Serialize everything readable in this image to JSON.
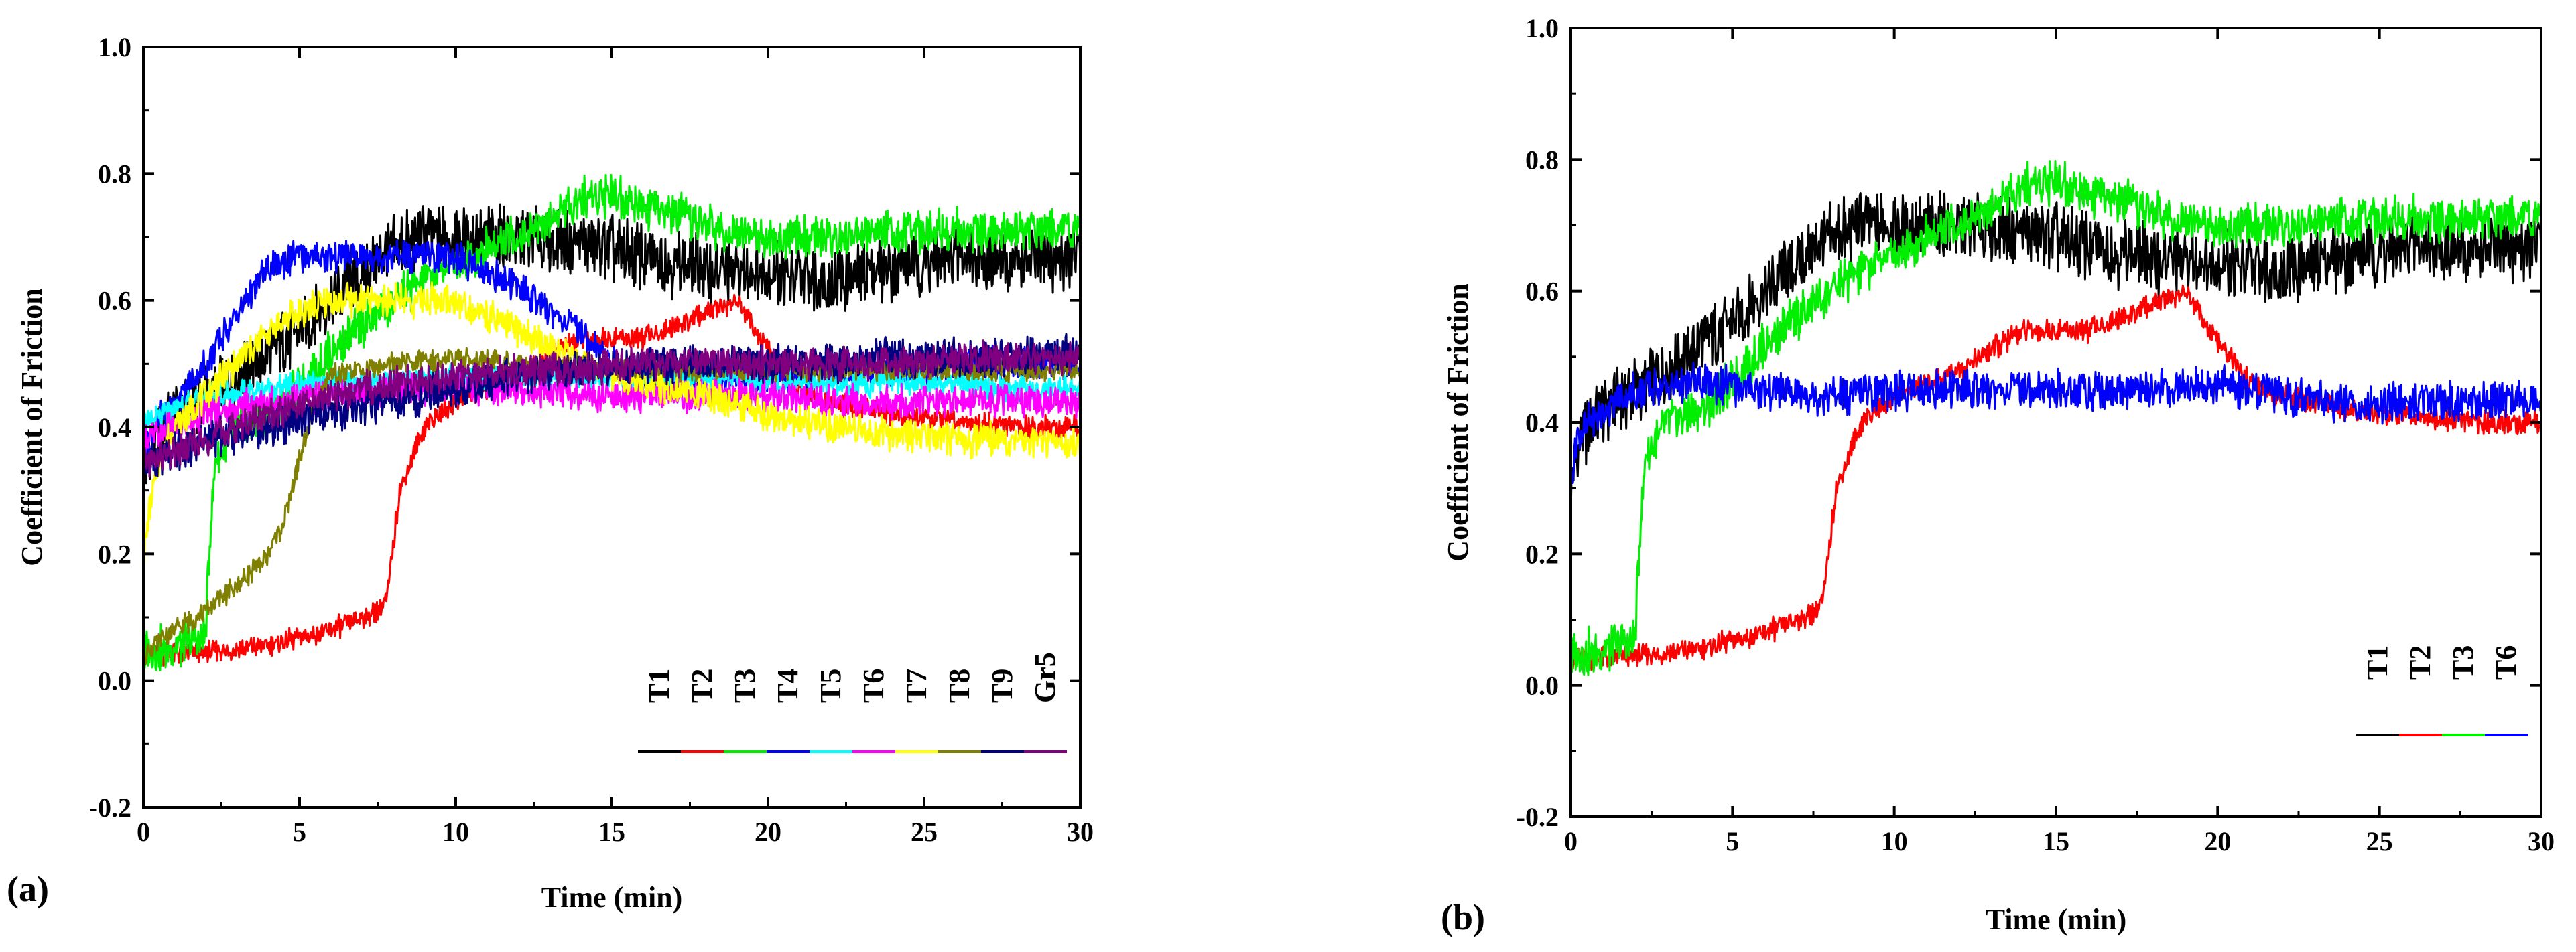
{
  "chart_data": [
    {
      "panel_label": "(a)",
      "type": "line",
      "xlabel": "Time (min)",
      "ylabel": "Coefficient of Friction",
      "xlim": [
        0,
        30
      ],
      "ylim": [
        -0.2,
        1.0
      ],
      "xticks": [
        "0",
        "5",
        "10",
        "15",
        "20",
        "25",
        "30"
      ],
      "yticks": [
        "-0.2",
        "0.0",
        "0.2",
        "0.4",
        "0.6",
        "0.8",
        "1.0"
      ],
      "legend_position": "bottom-right",
      "series": [
        {
          "name": "T1",
          "color": "#000000",
          "noise": 0.06,
          "x": [
            0,
            0.3,
            1,
            2,
            3,
            4,
            5,
            6,
            7,
            8,
            9,
            10,
            12,
            14,
            16,
            18,
            20,
            22,
            24,
            26,
            28,
            30
          ],
          "y": [
            0.3,
            0.38,
            0.42,
            0.45,
            0.48,
            0.52,
            0.55,
            0.6,
            0.64,
            0.68,
            0.7,
            0.7,
            0.7,
            0.69,
            0.67,
            0.65,
            0.64,
            0.63,
            0.65,
            0.67,
            0.66,
            0.67
          ]
        },
        {
          "name": "T2",
          "color": "#ff0000",
          "noise": 0.02,
          "x": [
            0,
            0.2,
            2,
            4,
            6,
            7.5,
            7.8,
            8.2,
            9,
            10,
            12,
            14,
            16,
            18,
            19,
            20,
            21,
            22,
            24,
            26,
            28,
            30
          ],
          "y": [
            0.03,
            0.04,
            0.045,
            0.055,
            0.08,
            0.11,
            0.13,
            0.3,
            0.4,
            0.44,
            0.48,
            0.54,
            0.54,
            0.58,
            0.6,
            0.52,
            0.46,
            0.44,
            0.42,
            0.41,
            0.4,
            0.4
          ]
        },
        {
          "name": "T3",
          "color": "#00ee00",
          "noise": 0.04,
          "x": [
            0,
            0.3,
            1,
            2,
            2.1,
            2.3,
            3,
            4,
            5,
            6,
            8,
            10,
            12,
            14,
            15,
            16,
            18,
            20,
            22,
            24,
            26,
            28,
            30
          ],
          "y": [
            0.04,
            0.05,
            0.05,
            0.07,
            0.2,
            0.35,
            0.4,
            0.42,
            0.46,
            0.52,
            0.6,
            0.66,
            0.7,
            0.76,
            0.77,
            0.75,
            0.72,
            0.7,
            0.7,
            0.71,
            0.71,
            0.71,
            0.72
          ]
        },
        {
          "name": "T4",
          "color": "#0000ff",
          "noise": 0.03,
          "x": [
            0,
            0.3,
            1,
            2,
            3,
            4,
            5,
            6,
            8,
            10,
            12,
            14,
            15,
            16,
            18,
            20,
            22,
            24,
            26,
            28,
            30
          ],
          "y": [
            0.35,
            0.4,
            0.44,
            0.5,
            0.58,
            0.65,
            0.67,
            0.67,
            0.67,
            0.67,
            0.62,
            0.55,
            0.5,
            0.48,
            0.48,
            0.48,
            0.49,
            0.49,
            0.5,
            0.5,
            0.5
          ]
        },
        {
          "name": "T5",
          "color": "#00ffff",
          "noise": 0.025,
          "x": [
            0,
            1,
            2,
            4,
            6,
            8,
            10,
            12,
            14,
            16,
            18,
            20,
            22,
            24,
            26,
            28,
            30
          ],
          "y": [
            0.4,
            0.43,
            0.45,
            0.46,
            0.47,
            0.47,
            0.48,
            0.48,
            0.48,
            0.48,
            0.48,
            0.47,
            0.47,
            0.47,
            0.47,
            0.46,
            0.46
          ]
        },
        {
          "name": "T6",
          "color": "#ff00ff",
          "noise": 0.03,
          "x": [
            0,
            1,
            2,
            4,
            6,
            8,
            10,
            12,
            14,
            16,
            18,
            20,
            22,
            24,
            26,
            28,
            30
          ],
          "y": [
            0.38,
            0.4,
            0.42,
            0.44,
            0.45,
            0.46,
            0.46,
            0.46,
            0.45,
            0.45,
            0.45,
            0.45,
            0.44,
            0.44,
            0.44,
            0.44,
            0.44
          ]
        },
        {
          "name": "T7",
          "color": "#ffff00",
          "noise": 0.03,
          "x": [
            0,
            0.3,
            0.6,
            1,
            2,
            3,
            4,
            5,
            6,
            8,
            10,
            12,
            14,
            16,
            18,
            20,
            22,
            24,
            26,
            28,
            30
          ],
          "y": [
            0.2,
            0.3,
            0.36,
            0.4,
            0.45,
            0.5,
            0.55,
            0.58,
            0.6,
            0.6,
            0.6,
            0.55,
            0.5,
            0.47,
            0.45,
            0.42,
            0.4,
            0.39,
            0.38,
            0.38,
            0.37
          ]
        },
        {
          "name": "T8",
          "color": "#808000",
          "noise": 0.02,
          "x": [
            0,
            0.2,
            1,
            2,
            3,
            4,
            4.5,
            5,
            5.5,
            6,
            8,
            10,
            12,
            14,
            16,
            18,
            20,
            22,
            24,
            26,
            28,
            30
          ],
          "y": [
            0.04,
            0.05,
            0.08,
            0.11,
            0.15,
            0.2,
            0.25,
            0.35,
            0.44,
            0.48,
            0.5,
            0.51,
            0.5,
            0.5,
            0.49,
            0.49,
            0.49,
            0.49,
            0.49,
            0.49,
            0.49,
            0.49
          ]
        },
        {
          "name": "T9",
          "color": "#000080",
          "noise": 0.035,
          "x": [
            0,
            1,
            2,
            4,
            6,
            8,
            10,
            12,
            14,
            16,
            18,
            20,
            22,
            24,
            26,
            28,
            30
          ],
          "y": [
            0.34,
            0.36,
            0.38,
            0.4,
            0.42,
            0.44,
            0.46,
            0.48,
            0.49,
            0.5,
            0.5,
            0.5,
            0.5,
            0.51,
            0.51,
            0.51,
            0.52
          ]
        },
        {
          "name": "Gr5",
          "color": "#800080",
          "noise": 0.03,
          "x": [
            0,
            1,
            2,
            4,
            6,
            8,
            10,
            12,
            14,
            16,
            18,
            20,
            22,
            24,
            26,
            28,
            30
          ],
          "y": [
            0.34,
            0.36,
            0.38,
            0.42,
            0.45,
            0.47,
            0.48,
            0.49,
            0.49,
            0.5,
            0.5,
            0.5,
            0.5,
            0.5,
            0.51,
            0.51,
            0.51
          ]
        }
      ]
    },
    {
      "panel_label": "(b)",
      "type": "line",
      "xlabel": "Time (min)",
      "ylabel": "Coefficient of Friction",
      "xlim": [
        0,
        30
      ],
      "ylim": [
        -0.2,
        1.0
      ],
      "xticks": [
        "0",
        "5",
        "10",
        "15",
        "20",
        "25",
        "30"
      ],
      "yticks": [
        "-0.2",
        "0.0",
        "0.2",
        "0.4",
        "0.6",
        "0.8",
        "1.0"
      ],
      "legend_position": "bottom-right",
      "series": [
        {
          "name": "T1",
          "color": "#000000",
          "noise": 0.06,
          "x": [
            0,
            0.3,
            1,
            2,
            3,
            4,
            5,
            6,
            7,
            8,
            9,
            10,
            12,
            14,
            16,
            18,
            20,
            22,
            24,
            26,
            28,
            30
          ],
          "y": [
            0.3,
            0.38,
            0.42,
            0.45,
            0.48,
            0.52,
            0.55,
            0.6,
            0.64,
            0.68,
            0.7,
            0.7,
            0.7,
            0.69,
            0.67,
            0.65,
            0.64,
            0.63,
            0.65,
            0.67,
            0.66,
            0.67
          ]
        },
        {
          "name": "T2",
          "color": "#ff0000",
          "noise": 0.02,
          "x": [
            0,
            0.2,
            2,
            4,
            6,
            7.5,
            7.8,
            8.2,
            9,
            10,
            12,
            14,
            16,
            18,
            19,
            20,
            21,
            22,
            24,
            26,
            28,
            30
          ],
          "y": [
            0.03,
            0.04,
            0.045,
            0.055,
            0.08,
            0.11,
            0.13,
            0.3,
            0.4,
            0.44,
            0.48,
            0.54,
            0.54,
            0.58,
            0.6,
            0.52,
            0.46,
            0.44,
            0.42,
            0.41,
            0.4,
            0.4
          ]
        },
        {
          "name": "T3",
          "color": "#00ee00",
          "noise": 0.04,
          "x": [
            0,
            0.3,
            1,
            2,
            2.1,
            2.3,
            3,
            4,
            5,
            6,
            8,
            10,
            12,
            14,
            15,
            16,
            18,
            20,
            22,
            24,
            26,
            28,
            30
          ],
          "y": [
            0.04,
            0.05,
            0.05,
            0.07,
            0.2,
            0.35,
            0.4,
            0.42,
            0.46,
            0.52,
            0.6,
            0.66,
            0.7,
            0.76,
            0.77,
            0.75,
            0.72,
            0.7,
            0.7,
            0.71,
            0.71,
            0.71,
            0.72
          ]
        },
        {
          "name": "T6",
          "color": "#0000ff",
          "noise": 0.035,
          "x": [
            0,
            0.2,
            1,
            2,
            4,
            6,
            8,
            10,
            12,
            14,
            16,
            18,
            20,
            22,
            24,
            26,
            28,
            30
          ],
          "y": [
            0.3,
            0.38,
            0.42,
            0.45,
            0.46,
            0.45,
            0.44,
            0.45,
            0.45,
            0.45,
            0.45,
            0.45,
            0.46,
            0.44,
            0.43,
            0.43,
            0.43,
            0.44
          ]
        }
      ]
    }
  ]
}
